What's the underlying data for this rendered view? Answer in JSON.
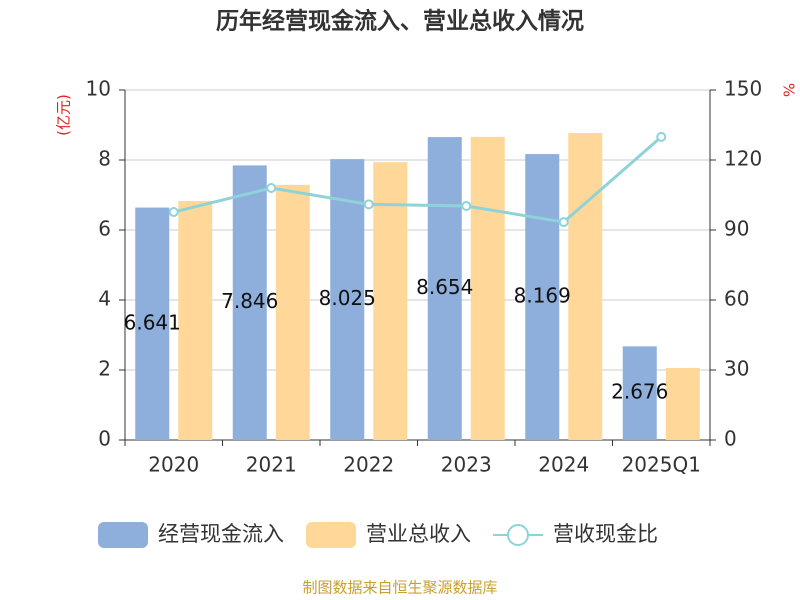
{
  "chart_data": {
    "type": "bar_line",
    "title": "历年经营现金流入、营业总收入情况",
    "y_label": "(亿元)",
    "y2_label": "%",
    "categories": [
      "2020",
      "2021",
      "2022",
      "2023",
      "2024",
      "2025Q1"
    ],
    "series": [
      {
        "name": "经营现金流入",
        "type": "bar",
        "color": "#8eaedc",
        "values": [
          6.641,
          7.846,
          8.025,
          8.654,
          8.169,
          2.676
        ],
        "show_labels": true
      },
      {
        "name": "营业总收入",
        "type": "bar",
        "color": "#ffd899",
        "values": [
          6.83,
          7.29,
          7.94,
          8.66,
          8.77,
          2.06
        ]
      },
      {
        "name": "营收现金比",
        "type": "line",
        "axis": "y2",
        "color": "#8dd3d8",
        "values": [
          97.7,
          108,
          101,
          100.3,
          93.4,
          129.9
        ]
      }
    ],
    "ylim": [
      0,
      10
    ],
    "yticks": [
      0,
      2,
      4,
      6,
      8,
      10
    ],
    "y2lim": [
      0,
      150
    ],
    "y2ticks": [
      0,
      30,
      60,
      90,
      120,
      150
    ],
    "grid": true,
    "legend": "bottom",
    "source": "制图数据来自恒生聚源数据库"
  }
}
